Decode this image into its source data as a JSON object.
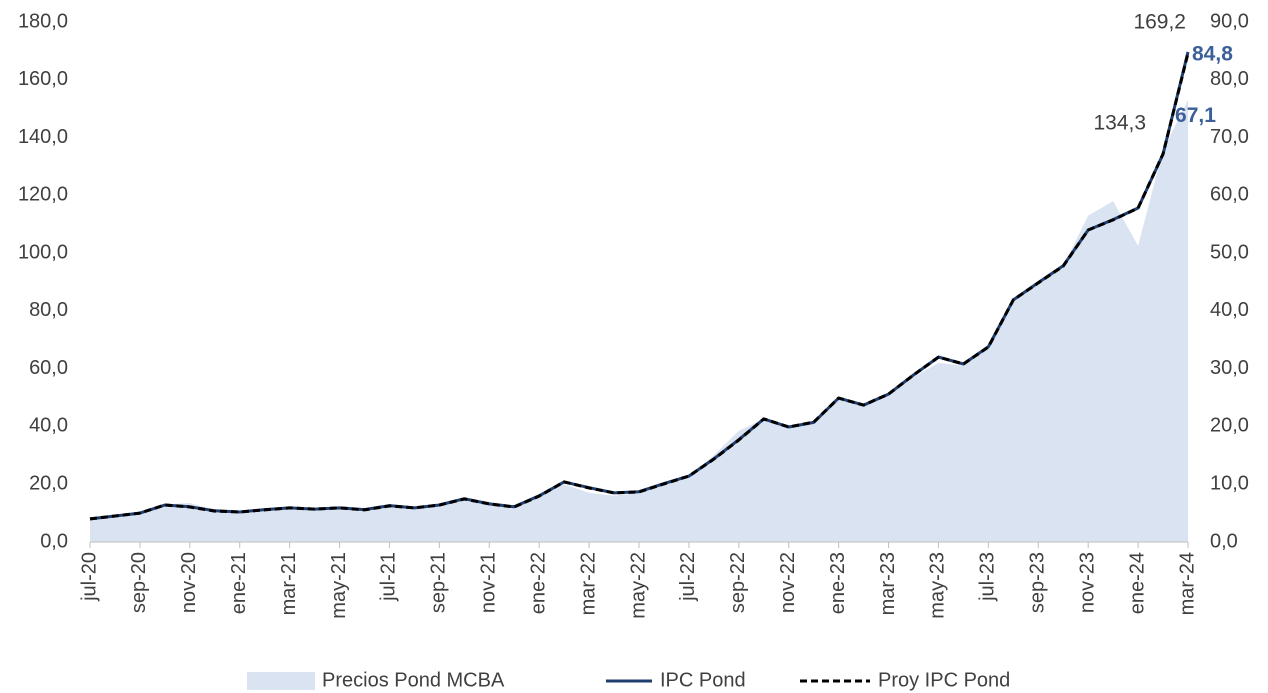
{
  "chart_data": {
    "type": "line",
    "categories": [
      "jul-20",
      null,
      "sep-20",
      null,
      "nov-20",
      null,
      "ene-21",
      null,
      "mar-21",
      null,
      "may-21",
      null,
      "jul-21",
      null,
      "sep-21",
      null,
      "nov-21",
      null,
      "ene-22",
      null,
      "mar-22",
      null,
      "may-22",
      null,
      "jul-22",
      null,
      "sep-22",
      null,
      "nov-22",
      null,
      "ene-23",
      null,
      "mar-23",
      null,
      "may-23",
      null,
      "jul-23",
      null,
      "sep-23",
      null,
      "nov-23",
      null,
      "ene-24",
      null,
      "mar-24"
    ],
    "ylim": [
      0,
      180
    ],
    "yticks": [
      {
        "value": 0,
        "label": "0,0"
      },
      {
        "value": 20,
        "label": "20,0"
      },
      {
        "value": 40,
        "label": "40,0"
      },
      {
        "value": 60,
        "label": "60,0"
      },
      {
        "value": 80,
        "label": "80,0"
      },
      {
        "value": 100,
        "label": "100,0"
      },
      {
        "value": 120,
        "label": "120,0"
      },
      {
        "value": 140,
        "label": "140,0"
      },
      {
        "value": 160,
        "label": "160,0"
      },
      {
        "value": 180,
        "label": "180,0"
      }
    ],
    "y2lim": [
      0,
      90
    ],
    "y2ticks": [
      {
        "value": 0,
        "label": "0,0"
      },
      {
        "value": 10,
        "label": "10,0"
      },
      {
        "value": 20,
        "label": "20,0"
      },
      {
        "value": 30,
        "label": "30,0"
      },
      {
        "value": 40,
        "label": "40,0"
      },
      {
        "value": 50,
        "label": "50,0"
      },
      {
        "value": 60,
        "label": "60,0"
      },
      {
        "value": 70,
        "label": "70,0"
      },
      {
        "value": 80,
        "label": "80,0"
      },
      {
        "value": 90,
        "label": "90,0"
      }
    ],
    "legend": "bottom",
    "series": [
      {
        "name": "Precios Pond MCBA",
        "kind": "area",
        "color": "#dae3f1",
        "values": [
          8.0,
          9.0,
          10.2,
          13.0,
          13.5,
          11.0,
          10.4,
          11.1,
          11.8,
          11.4,
          11.8,
          11.1,
          12.5,
          11.8,
          12.8,
          14.9,
          13.2,
          12.1,
          15.9,
          20.0,
          17.0,
          16.0,
          17.0,
          20.1,
          22.8,
          30.0,
          38.5,
          42.6,
          39.8,
          41.0,
          49.8,
          47.4,
          51.2,
          57.0,
          62.0,
          61.0,
          68.0,
          83.8,
          89.0,
          95.5,
          113.0,
          118.0,
          102.5,
          135.7,
          153.0
        ]
      },
      {
        "name": "IPC Pond",
        "kind": "line",
        "axis": "y2",
        "color": "#1f3d6e",
        "values": [
          4.0,
          4.5,
          5.0,
          6.4,
          6.1,
          5.4,
          5.2,
          5.6,
          5.9,
          5.7,
          5.9,
          5.6,
          6.3,
          5.9,
          6.4,
          7.5,
          6.6,
          6.1,
          8.0,
          10.4,
          9.4,
          8.5,
          8.7,
          10.1,
          11.4,
          14.4,
          17.7,
          21.3,
          19.9,
          20.7,
          24.9,
          23.7,
          25.6,
          28.9,
          32.0,
          30.8,
          33.8,
          41.9,
          44.9,
          47.8,
          54.0,
          55.8,
          57.8,
          67.1,
          84.8
        ],
        "value_labels": [
          null,
          null,
          null,
          null,
          null,
          null,
          null,
          null,
          null,
          null,
          null,
          null,
          null,
          null,
          null,
          null,
          null,
          null,
          null,
          null,
          null,
          null,
          null,
          null,
          null,
          null,
          null,
          null,
          null,
          null,
          null,
          null,
          null,
          null,
          null,
          null,
          null,
          null,
          null,
          null,
          null,
          null,
          null,
          "67,1",
          "84,8"
        ]
      },
      {
        "name": "Proy IPC Pond",
        "kind": "dashed",
        "color": "#000000",
        "values": [
          8.0,
          9.0,
          10.0,
          12.8,
          12.1,
          10.7,
          10.4,
          11.1,
          11.8,
          11.4,
          11.8,
          11.1,
          12.5,
          11.8,
          12.8,
          14.9,
          13.2,
          12.1,
          15.9,
          20.8,
          18.7,
          17.0,
          17.3,
          20.1,
          22.8,
          28.7,
          35.3,
          42.6,
          39.8,
          41.5,
          49.8,
          47.4,
          51.2,
          57.8,
          64.0,
          61.6,
          67.5,
          83.8,
          89.7,
          95.5,
          108.0,
          111.5,
          115.6,
          134.3,
          169.2
        ],
        "value_labels": [
          null,
          null,
          null,
          null,
          null,
          null,
          null,
          null,
          null,
          null,
          null,
          null,
          null,
          null,
          null,
          null,
          null,
          null,
          null,
          null,
          null,
          null,
          null,
          null,
          null,
          null,
          null,
          null,
          null,
          null,
          null,
          null,
          null,
          null,
          null,
          null,
          null,
          null,
          null,
          null,
          null,
          null,
          null,
          "134,3",
          "169,2"
        ]
      }
    ]
  }
}
